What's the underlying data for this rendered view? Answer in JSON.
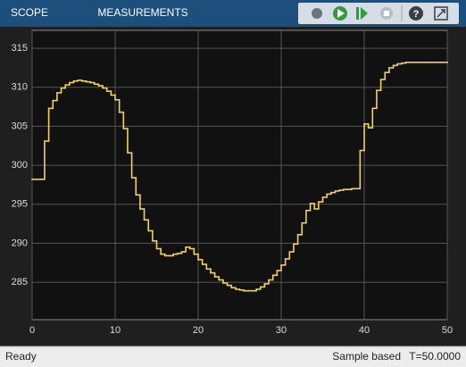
{
  "toolbar": {
    "tabs": [
      "SCOPE",
      "MEASUREMENTS"
    ]
  },
  "status": {
    "left": "Ready",
    "mode": "Sample based",
    "time": "T=50.0000"
  },
  "chart_data": {
    "type": "step",
    "color": "#f0d060",
    "grid": true,
    "x": [
      0,
      0.5,
      1,
      1.5,
      2,
      2.5,
      3,
      3.5,
      4,
      4.5,
      5,
      5.5,
      6,
      6.5,
      7,
      7.5,
      8,
      8.5,
      9,
      9.5,
      10,
      10.5,
      11,
      11.5,
      12,
      12.5,
      13,
      13.5,
      14,
      14.5,
      15,
      15.5,
      16,
      16.5,
      17,
      17.5,
      18,
      18.5,
      19,
      19.5,
      20,
      20.5,
      21,
      21.5,
      22,
      22.5,
      23,
      23.5,
      24,
      24.5,
      25,
      25.5,
      26,
      26.5,
      27,
      27.5,
      28,
      28.5,
      29,
      29.5,
      30,
      30.5,
      31,
      31.5,
      32,
      32.5,
      33,
      33.5,
      34,
      34.5,
      35,
      35.5,
      36,
      36.5,
      37,
      37.5,
      38,
      38.5,
      39,
      39.5,
      40,
      40.5,
      41,
      41.5,
      42,
      42.5,
      43,
      43.5,
      44,
      44.5,
      45,
      45.5,
      46,
      46.5,
      47,
      47.5,
      48,
      48.5,
      49,
      49.5,
      50
    ],
    "values": [
      298.2,
      298.2,
      298.2,
      303.1,
      307.3,
      308.3,
      309.3,
      309.9,
      310.3,
      310.6,
      310.8,
      310.9,
      310.8,
      310.7,
      310.6,
      310.4,
      310.2,
      309.9,
      309.5,
      309.0,
      308.4,
      306.8,
      304.7,
      301.6,
      298.4,
      296.2,
      294.4,
      293.0,
      291.6,
      290.3,
      289.3,
      288.6,
      288.4,
      288.4,
      288.6,
      288.7,
      288.9,
      289.5,
      289.3,
      288.6,
      287.9,
      287.3,
      286.7,
      286.2,
      285.7,
      285.3,
      284.9,
      284.6,
      284.3,
      284.1,
      284.0,
      283.9,
      283.9,
      283.9,
      284.1,
      284.4,
      284.8,
      285.3,
      285.9,
      286.5,
      287.2,
      288.0,
      288.9,
      289.9,
      291.1,
      292.6,
      294.2,
      295.1,
      294.4,
      295.3,
      295.9,
      296.3,
      296.5,
      296.7,
      296.8,
      296.9,
      296.9,
      297.0,
      297.0,
      301.9,
      305.3,
      304.8,
      307.3,
      309.6,
      311.0,
      311.9,
      312.5,
      312.8,
      313.0,
      313.1,
      313.2,
      313.2,
      313.2,
      313.2,
      313.2,
      313.2,
      313.2,
      313.2,
      313.2,
      313.2,
      313.2
    ],
    "xlim": [
      0,
      50
    ],
    "xticks": [
      0,
      10,
      20,
      30,
      40,
      50
    ],
    "ylim": [
      280.2,
      317.3
    ],
    "yticks": [
      285,
      290,
      295,
      300,
      305,
      310,
      315
    ]
  }
}
